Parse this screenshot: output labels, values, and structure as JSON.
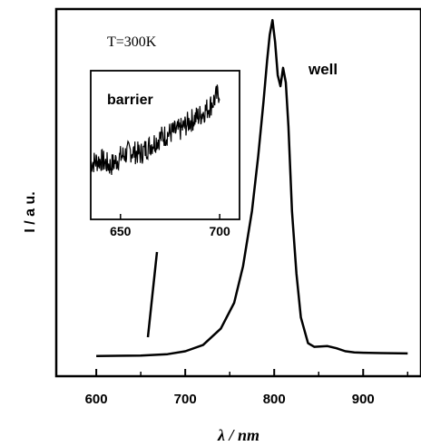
{
  "chart_data": [
    {
      "type": "line",
      "title": "",
      "xlabel": "λ / nm",
      "ylabel": "I / a u.",
      "xlim": [
        555,
        965
      ],
      "ylim": [
        0,
        100
      ],
      "xticks": [
        600,
        700,
        800,
        900
      ],
      "grid": false,
      "annotations": [
        "T=300K",
        "well"
      ],
      "series": [
        {
          "x": [
            600,
            650,
            680,
            700,
            720,
            740,
            755,
            765,
            775,
            782,
            788,
            792,
            795,
            798,
            801,
            804,
            807,
            810,
            813,
            816,
            820,
            825,
            830,
            838,
            845,
            860,
            870,
            880,
            890,
            900,
            920,
            950
          ],
          "y": [
            5.5,
            5.6,
            6,
            6.8,
            8.5,
            13,
            20,
            30,
            45,
            60,
            75,
            86,
            93,
            97,
            91,
            82,
            79,
            84,
            80,
            68,
            45,
            28,
            16,
            9,
            8,
            8.2,
            7.6,
            6.8,
            6.5,
            6.4,
            6.3,
            6.2
          ]
        }
      ]
    },
    {
      "type": "line",
      "title": "",
      "xlabel": "",
      "ylabel": "",
      "xlim": [
        635,
        710
      ],
      "ylim": [
        0,
        100
      ],
      "xticks": [
        650,
        700
      ],
      "grid": false,
      "annotations": [
        "barrier"
      ],
      "series": [
        {
          "x": [
            635,
            640,
            645,
            650,
            655,
            660,
            665,
            670,
            675,
            680,
            685,
            690,
            695,
            700
          ],
          "y": [
            38,
            40,
            36,
            42,
            46,
            44,
            50,
            55,
            58,
            60,
            66,
            70,
            76,
            86
          ]
        }
      ]
    }
  ]
}
